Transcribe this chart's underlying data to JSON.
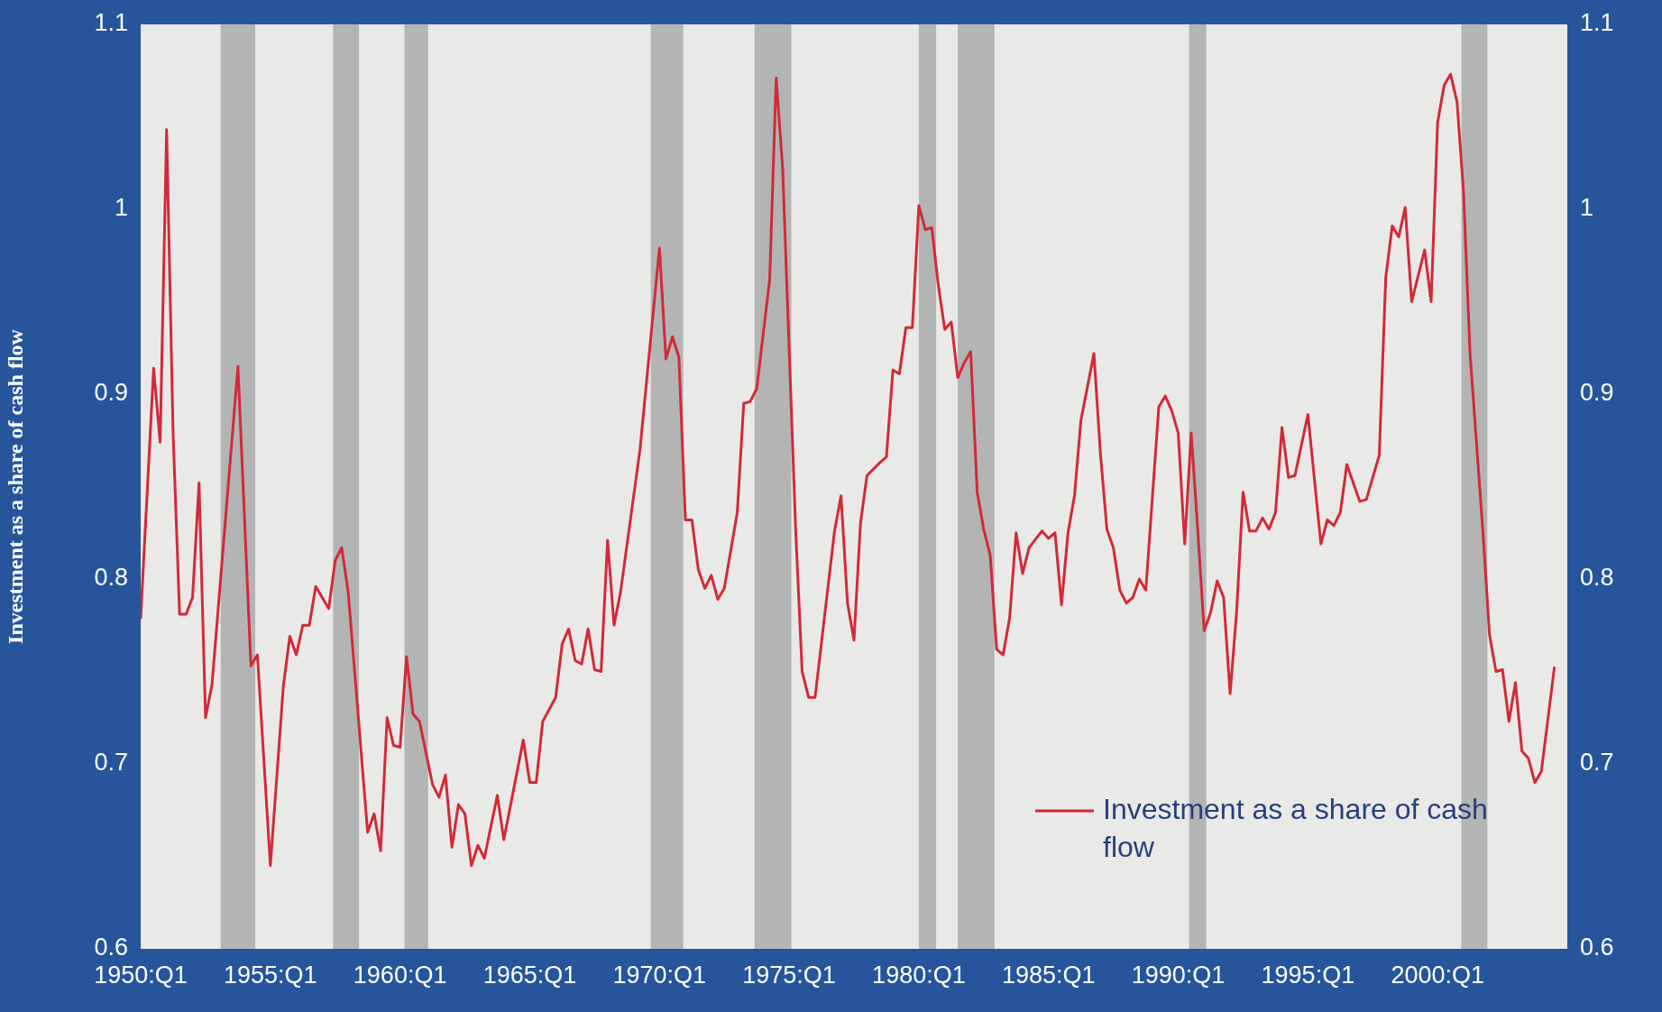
{
  "chart_data": {
    "type": "line",
    "ylabel": "Investment as a share of cash flow",
    "xlim": [
      "1950-01",
      "2005-01"
    ],
    "xticks": [
      {
        "value": "1950-01",
        "label": "1950:Q1"
      },
      {
        "value": "1955-01",
        "label": "1955:Q1"
      },
      {
        "value": "1960-01",
        "label": "1960:Q1"
      },
      {
        "value": "1965-01",
        "label": "1965:Q1"
      },
      {
        "value": "1970-01",
        "label": "1970:Q1"
      },
      {
        "value": "1975-01",
        "label": "1975:Q1"
      },
      {
        "value": "1980-01",
        "label": "1980:Q1"
      },
      {
        "value": "1985-01",
        "label": "1985:Q1"
      },
      {
        "value": "1990-01",
        "label": "1990:Q1"
      },
      {
        "value": "1995-01",
        "label": "1995:Q1"
      },
      {
        "value": "2000-01",
        "label": "2000:Q1"
      }
    ],
    "ylim": [
      0.6,
      1.1
    ],
    "yticks": [
      0.6,
      0.7,
      0.8,
      0.9,
      1,
      1.1
    ],
    "y2lim": [
      0.6,
      1.1
    ],
    "y2ticks": [
      0.6,
      0.7,
      0.8,
      0.9,
      1,
      1.1
    ],
    "grid": false,
    "legend": "bottom right",
    "marker": "none",
    "line_style": "solid",
    "bands": [
      {
        "axis": "x",
        "from": "1953-02",
        "to": "1954-06",
        "color": "#b3b5b5"
      },
      {
        "axis": "x",
        "from": "1957-06",
        "to": "1958-06",
        "color": "#b3b5b5"
      },
      {
        "axis": "x",
        "from": "1960-03",
        "to": "1961-02",
        "color": "#b3b5b5"
      },
      {
        "axis": "x",
        "from": "1969-09",
        "to": "1970-12",
        "color": "#b3b5b5"
      },
      {
        "axis": "x",
        "from": "1973-09",
        "to": "1975-02",
        "color": "#b3b5b5"
      },
      {
        "axis": "x",
        "from": "1980-01",
        "to": "1980-09",
        "color": "#b3b5b5"
      },
      {
        "axis": "x",
        "from": "1981-07",
        "to": "1982-12",
        "color": "#b3b5b5"
      },
      {
        "axis": "x",
        "from": "1990-06",
        "to": "1991-02",
        "color": "#b3b5b5"
      },
      {
        "axis": "x",
        "from": "2000-12",
        "to": "2001-12",
        "color": "#b3b5b5"
      }
    ],
    "series": [
      {
        "name": "Investment as a share of cash flow",
        "color": "#d22a36",
        "x": [
          "1950-01",
          "1950-07",
          "1950-10",
          "1951-01",
          "1951-04",
          "1951-07",
          "1951-10",
          "1952-01",
          "1952-04",
          "1952-07",
          "1952-10",
          "1953-10",
          "1954-04",
          "1954-07",
          "1955-01",
          "1955-07",
          "1955-10",
          "1956-01",
          "1956-04",
          "1956-07",
          "1956-10",
          "1957-04",
          "1957-07",
          "1957-10",
          "1958-01",
          "1958-10",
          "1959-01",
          "1959-04",
          "1959-07",
          "1959-10",
          "1960-01",
          "1960-04",
          "1960-07",
          "1960-10",
          "1961-04",
          "1961-07",
          "1961-10",
          "1962-01",
          "1962-04",
          "1962-07",
          "1962-10",
          "1963-01",
          "1963-04",
          "1963-10",
          "1964-01",
          "1964-10",
          "1965-01",
          "1965-04",
          "1965-07",
          "1966-01",
          "1966-04",
          "1966-07",
          "1966-10",
          "1967-01",
          "1967-04",
          "1967-07",
          "1967-10",
          "1968-01",
          "1968-04",
          "1968-07",
          "1969-04",
          "1970-01",
          "1970-04",
          "1970-07",
          "1970-10",
          "1971-01",
          "1971-04",
          "1971-07",
          "1971-10",
          "1972-01",
          "1972-04",
          "1972-07",
          "1973-01",
          "1973-04",
          "1973-07",
          "1973-10",
          "1974-04",
          "1974-07",
          "1974-10",
          "1975-04",
          "1975-07",
          "1975-10",
          "1976-01",
          "1976-10",
          "1977-01",
          "1977-04",
          "1977-07",
          "1977-10",
          "1978-01",
          "1978-07",
          "1978-10",
          "1979-01",
          "1979-04",
          "1979-07",
          "1979-10",
          "1980-01",
          "1980-04",
          "1980-07",
          "1980-10",
          "1981-01",
          "1981-04",
          "1981-07",
          "1981-10",
          "1982-01",
          "1982-04",
          "1982-07",
          "1982-10",
          "1983-01",
          "1983-04",
          "1983-07",
          "1983-10",
          "1984-01",
          "1984-04",
          "1984-10",
          "1985-01",
          "1985-04",
          "1985-07",
          "1985-10",
          "1986-01",
          "1986-04",
          "1986-10",
          "1987-01",
          "1987-04",
          "1987-07",
          "1987-10",
          "1988-01",
          "1988-04",
          "1988-07",
          "1988-10",
          "1989-04",
          "1989-07",
          "1989-10",
          "1990-01",
          "1990-04",
          "1990-07",
          "1990-10",
          "1991-01",
          "1991-04",
          "1991-07",
          "1991-10",
          "1992-01",
          "1992-04",
          "1992-07",
          "1992-10",
          "1993-01",
          "1993-04",
          "1993-07",
          "1993-10",
          "1994-01",
          "1994-04",
          "1994-07",
          "1995-01",
          "1995-07",
          "1995-10",
          "1996-01",
          "1996-04",
          "1996-07",
          "1997-01",
          "1997-04",
          "1997-10",
          "1998-01",
          "1998-04",
          "1998-07",
          "1998-10",
          "1999-01",
          "1999-04",
          "1999-07",
          "1999-10",
          "2000-01",
          "2000-04",
          "2000-07",
          "2000-10",
          "2001-01",
          "2001-04",
          "2001-10",
          "2002-01",
          "2002-04",
          "2002-07",
          "2002-10",
          "2003-01",
          "2003-04",
          "2003-07",
          "2003-10",
          "2004-01",
          "2004-07"
        ],
        "values": [
          0.779,
          0.914,
          0.874,
          1.043,
          0.879,
          0.781,
          0.781,
          0.79,
          0.852,
          0.725,
          0.743,
          0.915,
          0.753,
          0.759,
          0.645,
          0.742,
          0.769,
          0.759,
          0.775,
          0.775,
          0.796,
          0.784,
          0.81,
          0.817,
          0.793,
          0.663,
          0.673,
          0.653,
          0.725,
          0.71,
          0.709,
          0.758,
          0.727,
          0.723,
          0.689,
          0.682,
          0.694,
          0.655,
          0.678,
          0.673,
          0.645,
          0.656,
          0.649,
          0.683,
          0.659,
          0.713,
          0.69,
          0.69,
          0.723,
          0.736,
          0.765,
          0.773,
          0.756,
          0.754,
          0.773,
          0.751,
          0.75,
          0.821,
          0.775,
          0.793,
          0.87,
          0.979,
          0.919,
          0.931,
          0.92,
          0.832,
          0.832,
          0.805,
          0.795,
          0.802,
          0.789,
          0.795,
          0.836,
          0.895,
          0.896,
          0.903,
          0.962,
          1.071,
          1.022,
          0.827,
          0.75,
          0.736,
          0.736,
          0.826,
          0.845,
          0.787,
          0.767,
          0.83,
          0.856,
          0.863,
          0.866,
          0.913,
          0.911,
          0.936,
          0.936,
          1.002,
          0.989,
          0.99,
          0.959,
          0.935,
          0.939,
          0.909,
          0.917,
          0.923,
          0.847,
          0.827,
          0.813,
          0.762,
          0.759,
          0.779,
          0.825,
          0.803,
          0.817,
          0.826,
          0.822,
          0.825,
          0.786,
          0.825,
          0.845,
          0.886,
          0.922,
          0.868,
          0.827,
          0.817,
          0.794,
          0.787,
          0.79,
          0.8,
          0.794,
          0.893,
          0.899,
          0.891,
          0.879,
          0.819,
          0.879,
          0.827,
          0.772,
          0.782,
          0.799,
          0.79,
          0.738,
          0.782,
          0.847,
          0.826,
          0.826,
          0.833,
          0.827,
          0.836,
          0.882,
          0.855,
          0.856,
          0.889,
          0.819,
          0.832,
          0.829,
          0.836,
          0.862,
          0.842,
          0.843,
          0.867,
          0.963,
          0.991,
          0.985,
          1.001,
          0.95,
          0.964,
          0.978,
          0.95,
          1.047,
          1.067,
          1.073,
          1.058,
          1.009,
          0.922,
          0.825,
          0.77,
          0.75,
          0.751,
          0.723,
          0.744,
          0.707,
          0.703,
          0.69,
          0.696,
          0.752
        ]
      }
    ]
  }
}
